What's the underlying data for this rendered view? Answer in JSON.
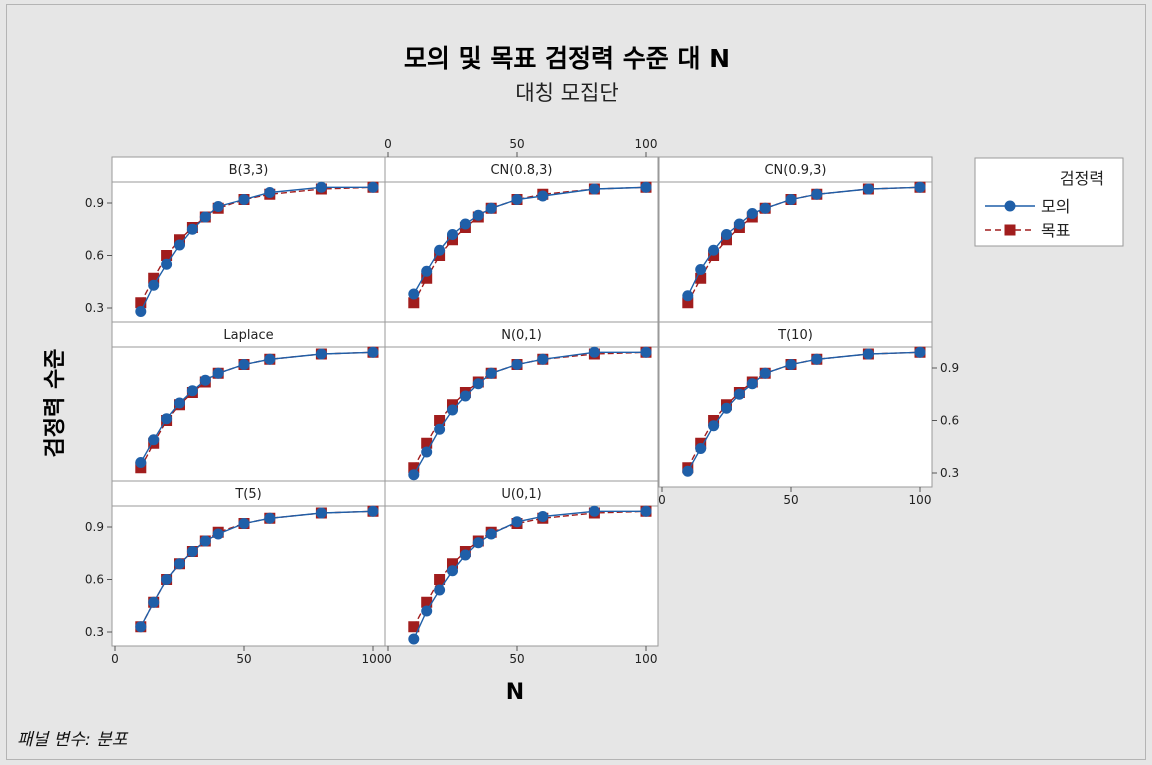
{
  "chart_data": {
    "type": "line",
    "title": "모의 및 목표 검정력 수준 대 N",
    "subtitle": "대칭 모집단",
    "xlabel": "N",
    "ylabel": "검정력 수준",
    "footnote": "패널 변수: 분포",
    "xlim": [
      0,
      100
    ],
    "ylim": [
      0.22,
      1.02
    ],
    "x_ticks": [
      0,
      50,
      100
    ],
    "y_ticks": [
      0.3,
      0.6,
      0.9
    ],
    "legend": {
      "title": "검정력",
      "position": "right",
      "items": [
        {
          "label": "모의",
          "color": "#1f5fa8",
          "marker": "circle",
          "line": "solid"
        },
        {
          "label": "목표",
          "color": "#a11d1d",
          "marker": "square",
          "line": "dashed"
        }
      ]
    },
    "x": [
      10,
      15,
      20,
      25,
      30,
      35,
      40,
      50,
      60,
      80,
      100
    ],
    "panels": [
      {
        "label": "B(3,3)",
        "series": [
          {
            "name": "모의",
            "values": [
              0.28,
              0.43,
              0.55,
              0.66,
              0.75,
              0.82,
              0.88,
              0.92,
              0.96,
              0.99,
              0.99
            ]
          },
          {
            "name": "목표",
            "values": [
              0.33,
              0.47,
              0.6,
              0.69,
              0.76,
              0.82,
              0.87,
              0.92,
              0.95,
              0.98,
              0.99
            ]
          }
        ]
      },
      {
        "label": "CN(0.8,3)",
        "series": [
          {
            "name": "모의",
            "values": [
              0.38,
              0.51,
              0.63,
              0.72,
              0.78,
              0.83,
              0.87,
              0.92,
              0.94,
              0.98,
              0.99
            ]
          },
          {
            "name": "목표",
            "values": [
              0.33,
              0.47,
              0.6,
              0.69,
              0.76,
              0.82,
              0.87,
              0.92,
              0.95,
              0.98,
              0.99
            ]
          }
        ]
      },
      {
        "label": "CN(0.9,3)",
        "series": [
          {
            "name": "모의",
            "values": [
              0.37,
              0.52,
              0.63,
              0.72,
              0.78,
              0.84,
              0.87,
              0.92,
              0.95,
              0.98,
              0.99
            ]
          },
          {
            "name": "목표",
            "values": [
              0.33,
              0.47,
              0.6,
              0.69,
              0.76,
              0.82,
              0.87,
              0.92,
              0.95,
              0.98,
              0.99
            ]
          }
        ]
      },
      {
        "label": "Laplace",
        "series": [
          {
            "name": "모의",
            "values": [
              0.36,
              0.49,
              0.61,
              0.7,
              0.77,
              0.83,
              0.87,
              0.92,
              0.95,
              0.98,
              0.99
            ]
          },
          {
            "name": "목표",
            "values": [
              0.33,
              0.47,
              0.6,
              0.69,
              0.76,
              0.82,
              0.87,
              0.92,
              0.95,
              0.98,
              0.99
            ]
          }
        ]
      },
      {
        "label": "N(0,1)",
        "series": [
          {
            "name": "모의",
            "values": [
              0.29,
              0.42,
              0.55,
              0.66,
              0.74,
              0.81,
              0.87,
              0.92,
              0.95,
              0.99,
              0.99
            ]
          },
          {
            "name": "목표",
            "values": [
              0.33,
              0.47,
              0.6,
              0.69,
              0.76,
              0.82,
              0.87,
              0.92,
              0.95,
              0.98,
              0.99
            ]
          }
        ]
      },
      {
        "label": "T(10)",
        "series": [
          {
            "name": "모의",
            "values": [
              0.31,
              0.44,
              0.57,
              0.67,
              0.75,
              0.81,
              0.87,
              0.92,
              0.95,
              0.98,
              0.99
            ]
          },
          {
            "name": "목표",
            "values": [
              0.33,
              0.47,
              0.6,
              0.69,
              0.76,
              0.82,
              0.87,
              0.92,
              0.95,
              0.98,
              0.99
            ]
          }
        ]
      },
      {
        "label": "T(5)",
        "series": [
          {
            "name": "모의",
            "values": [
              0.33,
              0.47,
              0.6,
              0.69,
              0.76,
              0.82,
              0.86,
              0.92,
              0.95,
              0.98,
              0.99
            ]
          },
          {
            "name": "목표",
            "values": [
              0.33,
              0.47,
              0.6,
              0.69,
              0.76,
              0.82,
              0.87,
              0.92,
              0.95,
              0.98,
              0.99
            ]
          }
        ]
      },
      {
        "label": "U(0,1)",
        "series": [
          {
            "name": "모의",
            "values": [
              0.26,
              0.42,
              0.54,
              0.65,
              0.74,
              0.81,
              0.86,
              0.93,
              0.96,
              0.99,
              0.99
            ]
          },
          {
            "name": "목표",
            "values": [
              0.33,
              0.47,
              0.6,
              0.69,
              0.76,
              0.82,
              0.87,
              0.92,
              0.95,
              0.98,
              0.99
            ]
          }
        ]
      }
    ]
  }
}
